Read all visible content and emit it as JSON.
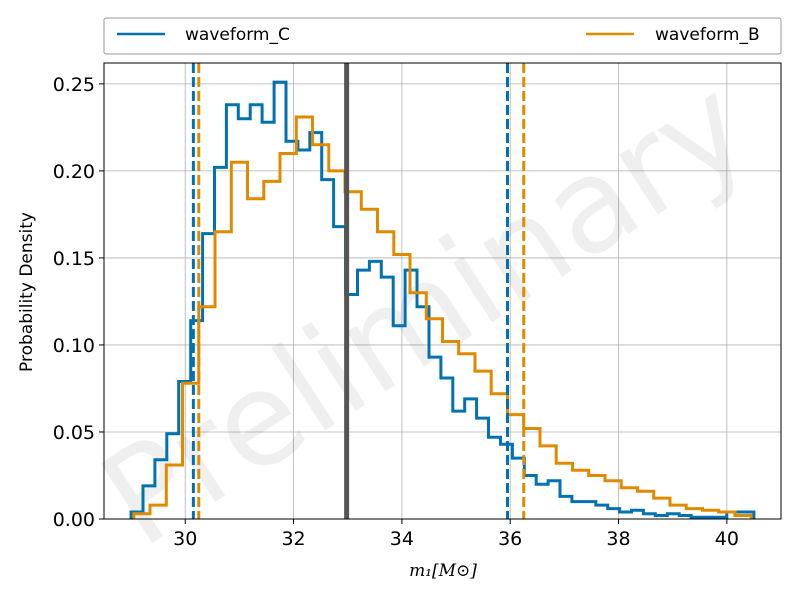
{
  "chart_data": {
    "type": "line",
    "title": "",
    "xlabel": "m₁[M⊙]",
    "ylabel": "Probability Density",
    "xlim": [
      28.5,
      41.0
    ],
    "ylim": [
      0.0,
      0.262
    ],
    "x_ticks": [
      30,
      32,
      34,
      36,
      38,
      40
    ],
    "y_ticks": [
      0.0,
      0.05,
      0.1,
      0.15,
      0.2,
      0.25
    ],
    "x_tick_labels": [
      "30",
      "32",
      "34",
      "36",
      "38",
      "40"
    ],
    "y_tick_labels": [
      "0.00",
      "0.05",
      "0.10",
      "0.15",
      "0.20",
      "0.25"
    ],
    "grid": true,
    "legend_placement": "top, above plot",
    "watermark": "Preliminary",
    "series": [
      {
        "name": "waveform_C",
        "color": "#0072b2",
        "histogram_edges": [
          29.0,
          29.22,
          29.44,
          29.66,
          29.88,
          30.1,
          30.32,
          30.54,
          30.76,
          30.98,
          31.2,
          31.42,
          31.64,
          31.86,
          32.08,
          32.3,
          32.52,
          32.74,
          32.96,
          33.18,
          33.4,
          33.62,
          33.84,
          34.06,
          34.28,
          34.5,
          34.72,
          34.94,
          35.16,
          35.38,
          35.6,
          35.82,
          36.04,
          36.26,
          36.48,
          36.7,
          36.92,
          37.14,
          37.36,
          37.58,
          37.8,
          38.02,
          38.24,
          38.46,
          38.68,
          38.9,
          39.12,
          39.34,
          39.56,
          39.78,
          40.0,
          40.22,
          40.5
        ],
        "values": [
          0.004,
          0.019,
          0.034,
          0.049,
          0.079,
          0.114,
          0.164,
          0.202,
          0.238,
          0.23,
          0.238,
          0.228,
          0.251,
          0.217,
          0.212,
          0.222,
          0.195,
          0.168,
          0.129,
          0.143,
          0.148,
          0.139,
          0.111,
          0.143,
          0.122,
          0.093,
          0.081,
          0.062,
          0.069,
          0.058,
          0.047,
          0.043,
          0.035,
          0.025,
          0.02,
          0.022,
          0.013,
          0.01,
          0.01,
          0.008,
          0.006,
          0.004,
          0.005,
          0.003,
          0.002,
          0.003,
          0.002,
          0.001,
          0.001,
          0.001,
          0.004,
          0.004
        ]
      },
      {
        "name": "waveform_B",
        "color": "#e08a00",
        "histogram_edges": [
          29.05,
          29.35,
          29.65,
          29.95,
          30.25,
          30.55,
          30.85,
          31.15,
          31.45,
          31.75,
          32.05,
          32.35,
          32.65,
          32.95,
          33.25,
          33.55,
          33.85,
          34.15,
          34.45,
          34.75,
          35.05,
          35.35,
          35.65,
          35.95,
          36.25,
          36.55,
          36.85,
          37.15,
          37.45,
          37.75,
          38.05,
          38.35,
          38.65,
          38.95,
          39.25,
          39.55,
          39.85,
          40.15,
          40.45
        ],
        "values": [
          0.003,
          0.008,
          0.031,
          0.078,
          0.122,
          0.165,
          0.205,
          0.184,
          0.194,
          0.21,
          0.231,
          0.215,
          0.2,
          0.188,
          0.178,
          0.165,
          0.152,
          0.13,
          0.115,
          0.102,
          0.095,
          0.085,
          0.072,
          0.06,
          0.052,
          0.042,
          0.032,
          0.028,
          0.025,
          0.022,
          0.018,
          0.016,
          0.012,
          0.008,
          0.006,
          0.005,
          0.004,
          0.002
        ]
      }
    ],
    "vertical_lines": [
      {
        "x": 30.15,
        "color": "#0072b2",
        "style": "dashed",
        "label": "waveform_C lower bound"
      },
      {
        "x": 35.95,
        "color": "#0072b2",
        "style": "dashed",
        "label": "waveform_C upper bound"
      },
      {
        "x": 30.25,
        "color": "#e08a00",
        "style": "dashed",
        "label": "waveform_B lower bound"
      },
      {
        "x": 36.25,
        "color": "#e08a00",
        "style": "dashed",
        "label": "waveform_B upper bound"
      },
      {
        "x": 32.98,
        "color": "#555555",
        "style": "solid",
        "label": "reference value"
      }
    ]
  }
}
